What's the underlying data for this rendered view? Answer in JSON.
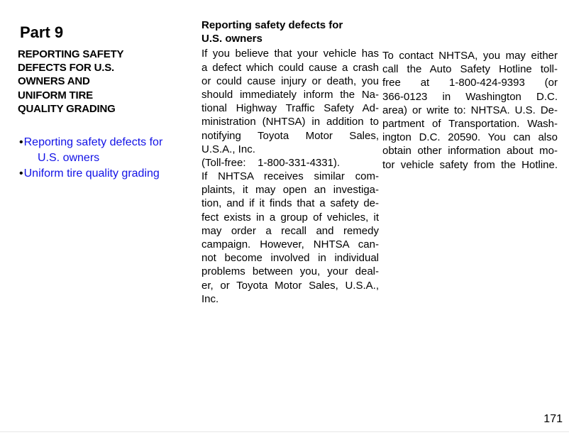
{
  "page": {
    "number": "171"
  },
  "colors": {
    "link_blue": "#1212e6",
    "text_black": "#000000",
    "footer_rule": "#e6e6e6",
    "background": "#ffffff"
  },
  "left_column": {
    "part_label": "Part 9",
    "title_lines": [
      "REPORTING SAFETY",
      "DEFECTS FOR U.S.",
      "OWNERS AND",
      "UNIFORM TIRE",
      "QUALITY GRADING"
    ],
    "toc_items": [
      {
        "bullet": "•",
        "lines": [
          "Reporting safety defects for",
          "U.S. owners"
        ]
      },
      {
        "bullet": "•",
        "lines": [
          "Uniform tire quality grading"
        ]
      }
    ]
  },
  "middle_column": {
    "heading_lines": [
      "Reporting safety defects for",
      "U.S. owners"
    ],
    "lines": [
      {
        "t": "If you believe that your vehicle has",
        "j": true
      },
      {
        "t": "a defect which could cause a crash",
        "j": true
      },
      {
        "t": "or could cause injury or death, you",
        "j": true
      },
      {
        "t": "should immediately inform the Na-",
        "j": true
      },
      {
        "t": "tional Highway Traffic Safety Ad-",
        "j": true
      },
      {
        "t": "ministration (NHTSA) in addition to",
        "j": true
      },
      {
        "t": "notifying Toyota Motor Sales,",
        "j": true
      },
      {
        "t": "U.S.A., Inc.",
        "j": false
      },
      {
        "t": "(Toll-free:    1-800-331-4331).",
        "j": false
      },
      {
        "t": "If NHTSA receives similar com-",
        "j": true
      },
      {
        "t": "plaints, it may open an investiga-",
        "j": true
      },
      {
        "t": "tion, and if it finds that a safety de-",
        "j": true
      },
      {
        "t": "fect exists in a group of vehicles, it",
        "j": true
      },
      {
        "t": "may order a recall and remedy",
        "j": true
      },
      {
        "t": "campaign. However, NHTSA can-",
        "j": true
      },
      {
        "t": "not become involved in individual",
        "j": true
      },
      {
        "t": "problems between you, your deal-",
        "j": true
      },
      {
        "t": "er, or Toyota Motor Sales, U.S.A.,",
        "j": true
      },
      {
        "t": "Inc.",
        "j": false
      }
    ]
  },
  "right_column": {
    "lines": [
      {
        "t": "To contact NHTSA, you may either",
        "j": true
      },
      {
        "t": "call the Auto Safety Hotline toll-",
        "j": true
      },
      {
        "t": "free at 1-800-424-9393 (or",
        "j": true
      },
      {
        "t": "366-0123 in Washington D.C.",
        "j": true
      },
      {
        "t": "area) or write to: NHTSA. U.S. De-",
        "j": true
      },
      {
        "t": "partment of Transportation. Wash-",
        "j": true
      },
      {
        "t": "ington D.C. 20590. You can also",
        "j": true
      },
      {
        "t": "obtain other information about mo-",
        "j": true
      },
      {
        "t": "tor vehicle safety from the Hotline.",
        "j": true
      }
    ]
  }
}
